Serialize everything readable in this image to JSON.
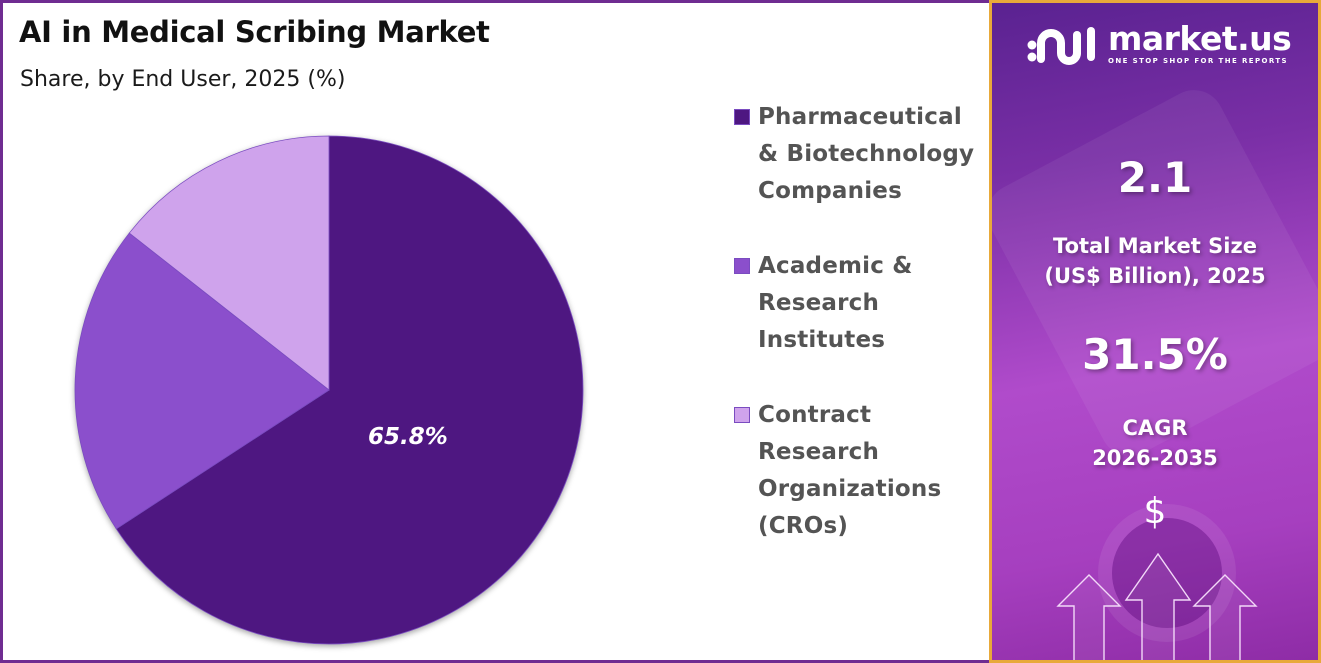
{
  "header": {
    "title": "AI in Medical Scribing Market",
    "subtitle": "Share, by End User, 2025 (%)"
  },
  "chart_data": {
    "type": "pie",
    "title": "AI in Medical Scribing Market",
    "subtitle": "Share, by End User, 2025 (%)",
    "categories": [
      "Pharmaceutical & Biotechnology Companies",
      "Academic & Research Institutes",
      "Contract Research Organizations (CROs)"
    ],
    "values": [
      65.8,
      19.8,
      14.4
    ],
    "labeled_values": [
      "65.8%",
      null,
      null
    ],
    "colors": [
      "#4e1781",
      "#8b4fcc",
      "#cfa3ec"
    ],
    "start_angle": "12 o'clock, clockwise",
    "legend_position": "right"
  },
  "pie": {
    "label": "65.8%"
  },
  "legend": {
    "items": [
      {
        "label": "Pharmaceutical\n& Biotechnology\nCompanies",
        "color": "#4e1781"
      },
      {
        "label": "Academic &\nResearch\nInstitutes",
        "color": "#8b4fcc"
      },
      {
        "label": "Contract\nResearch\nOrganizations\n(CROs)",
        "color": "#cfa3ec"
      }
    ]
  },
  "sidebar": {
    "brand": {
      "name": "market.us",
      "tagline": "ONE STOP SHOP FOR THE REPORTS"
    },
    "market_size": {
      "value": "2.1",
      "label": "Total Market Size\n(US$ Billion), 2025"
    },
    "cagr": {
      "value": "31.5%",
      "label": "CAGR\n2026-2035"
    },
    "currency_symbol": "$",
    "colors": {
      "border": "#e8a93a",
      "gradient_top": "#5a2291",
      "gradient_mid": "#b04bcb"
    }
  }
}
